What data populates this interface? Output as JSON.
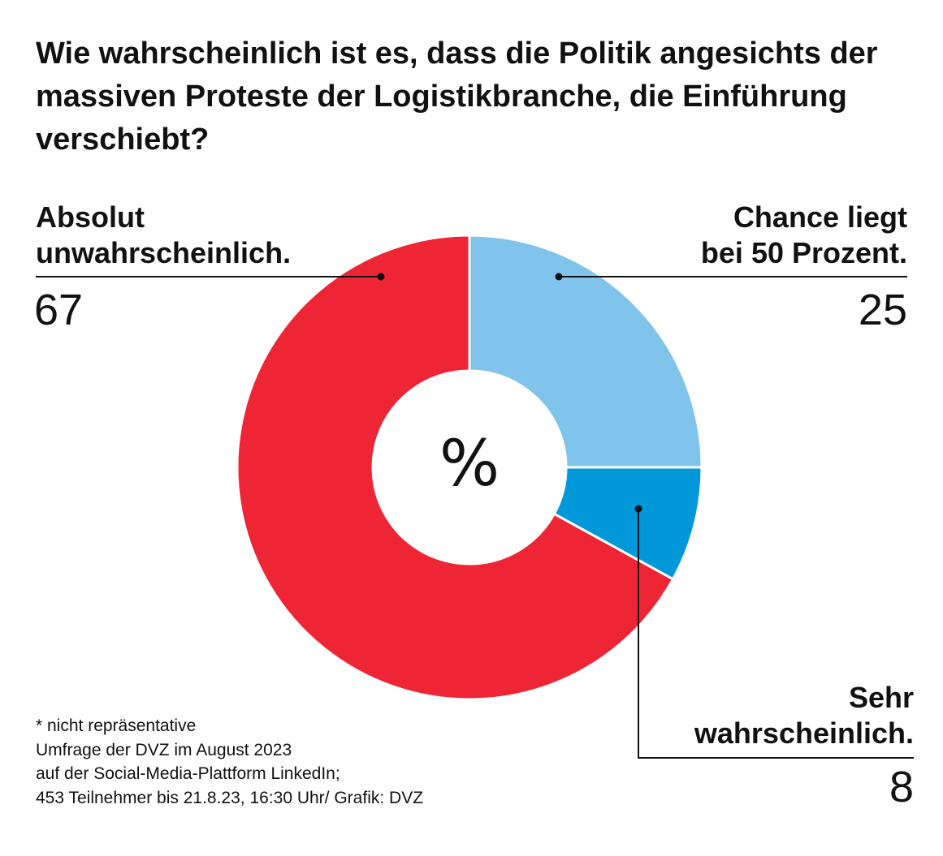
{
  "chart_data": {
    "type": "pie",
    "donut": true,
    "title": "Wie wahrscheinlich ist es, dass die Politik angesichts der massiven Proteste der Logistikbranche, die Einführung verschiebt?",
    "center_label": "%",
    "slices": [
      {
        "label_lines": [
          "Chance liegt",
          "bei 50 Prozent."
        ],
        "value": 25,
        "value_text": "25",
        "color": "#80c4ec"
      },
      {
        "label_lines": [
          "Sehr",
          "wahrscheinlich."
        ],
        "value": 8,
        "value_text": "8",
        "color": "#0098d9"
      },
      {
        "label_lines": [
          "Absolut",
          "unwahrscheinlich."
        ],
        "value": 67,
        "value_text": "67",
        "color": "#ee2535"
      }
    ]
  },
  "footnote": [
    "* nicht repräsentative",
    "Umfrage der DVZ im August 2023",
    "auf der Social-Media-Plattform LinkedIn;",
    "453 Teilnehmer bis 21.8.23, 16:30 Uhr/ Grafik: DVZ"
  ]
}
